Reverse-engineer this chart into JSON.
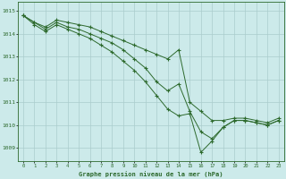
{
  "title": "Graphe pression niveau de la mer (hPa)",
  "background_color": "#cceaea",
  "grid_color": "#aacccc",
  "line_color": "#2d6a2d",
  "marker_color": "#2d6a2d",
  "xlim": [
    -0.5,
    23.5
  ],
  "ylim": [
    1008.4,
    1015.4
  ],
  "yticks": [
    1009,
    1010,
    1011,
    1012,
    1013,
    1014,
    1015
  ],
  "xticks": [
    0,
    1,
    2,
    3,
    4,
    5,
    6,
    7,
    8,
    9,
    10,
    11,
    12,
    13,
    14,
    15,
    16,
    17,
    18,
    19,
    20,
    21,
    22,
    23
  ],
  "series": [
    [
      1014.8,
      1014.5,
      1014.3,
      1014.6,
      1014.5,
      1014.4,
      1014.3,
      1014.1,
      1013.9,
      1013.7,
      1013.5,
      1013.3,
      1013.1,
      1012.9,
      1013.3,
      1011.0,
      1010.6,
      1010.2,
      1010.2,
      1010.3,
      1010.3,
      1010.2,
      1010.1,
      1010.3
    ],
    [
      1014.8,
      1014.5,
      1014.2,
      1014.5,
      1014.3,
      1014.2,
      1014.0,
      1013.8,
      1013.6,
      1013.3,
      1012.9,
      1012.5,
      1011.9,
      1011.5,
      1011.8,
      1010.6,
      1009.7,
      1009.4,
      1009.9,
      1010.2,
      1010.2,
      1010.1,
      1010.0,
      1010.2
    ],
    [
      1014.8,
      1014.4,
      1014.1,
      1014.4,
      1014.2,
      1014.0,
      1013.8,
      1013.5,
      1013.2,
      1012.8,
      1012.4,
      1011.9,
      1011.3,
      1010.7,
      1010.4,
      1010.5,
      1008.8,
      1009.3,
      1009.9,
      1010.2,
      1010.2,
      1010.1,
      1010.0,
      1010.2
    ]
  ],
  "figsize": [
    3.2,
    2.0
  ],
  "dpi": 100
}
